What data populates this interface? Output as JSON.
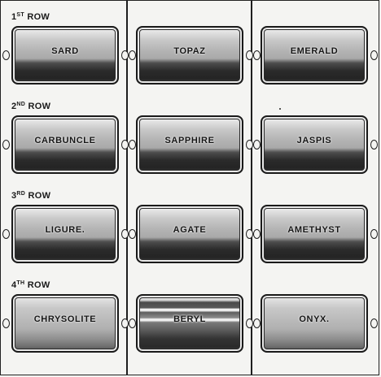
{
  "rows": [
    {
      "number": "1",
      "suffix": "ST",
      "word": "ROW",
      "stones": [
        "SARD",
        "TOPAZ",
        "EMERALD"
      ]
    },
    {
      "number": "2",
      "suffix": "ND",
      "word": "ROW",
      "stones": [
        "CARBUNCLE",
        "SAPPHIRE",
        "JASPIS"
      ]
    },
    {
      "number": "3",
      "suffix": "RD",
      "word": "ROW",
      "stones": [
        "LIGURE.",
        "AGATE",
        "AMETHYST"
      ]
    },
    {
      "number": "4",
      "suffix": "TH",
      "word": "ROW",
      "stones": [
        "CHRYSOLITE",
        "BERYL",
        "ONYX."
      ]
    }
  ]
}
